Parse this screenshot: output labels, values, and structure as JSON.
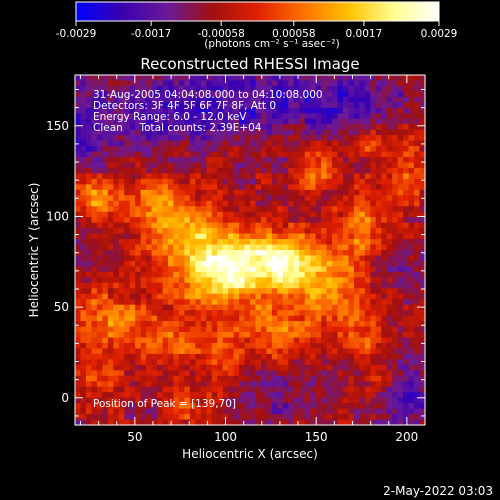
{
  "colorbar": {
    "tick_labels": [
      "-0.0029",
      "-0.0017",
      "-0.00058",
      "0.00058",
      "0.0017",
      "0.0029"
    ],
    "tick_values": [
      -0.0029,
      -0.0017,
      -0.00058,
      0.00058,
      0.0017,
      0.0029
    ],
    "range": [
      -0.0029,
      0.0029
    ],
    "unit_label": "(photons cm⁻² s⁻¹ asec⁻²)"
  },
  "chart_data": {
    "type": "heatmap",
    "title": "Reconstructed RHESSI Image",
    "xlabel": "Heliocentric X (arcsec)",
    "ylabel": "Heliocentric Y (arcsec)",
    "xlim": [
      17,
      210
    ],
    "ylim": [
      -15,
      178
    ],
    "x_ticks": [
      50,
      100,
      150,
      200
    ],
    "y_ticks": [
      0,
      50,
      100,
      150
    ],
    "annotations": [
      "31-Aug-2005 04:04:08.000 to 04:10:08.000",
      "Detectors: 3F 4F 5F 6F 7F 8F, Att 0",
      "Energy Range: 6.0 - 12.0 keV",
      "Clean     Total counts: 2.39E+04"
    ],
    "peak_label": "Position of Peak = [139,70]",
    "peak": [
      139,
      70
    ],
    "colormap": [
      "#0000ff",
      "#3a00b0",
      "#6a1a9a",
      "#a01010",
      "#e02000",
      "#ff7000",
      "#ffc000",
      "#ffff90",
      "#ffffff"
    ],
    "blobs": [
      {
        "x": 120,
        "y": 75,
        "sx": 24,
        "sy": 12,
        "a": 0.00285
      },
      {
        "x": 138,
        "y": 72,
        "sx": 12,
        "sy": 10,
        "a": 0.0009
      },
      {
        "x": 98,
        "y": 60,
        "sx": 14,
        "sy": 10,
        "a": 0.0012
      },
      {
        "x": 85,
        "y": 78,
        "sx": 16,
        "sy": 14,
        "a": 0.0015
      },
      {
        "x": 27,
        "y": 110,
        "sx": 10,
        "sy": 8,
        "a": 0.0017
      },
      {
        "x": 60,
        "y": 110,
        "sx": 12,
        "sy": 10,
        "a": 0.0011
      },
      {
        "x": 75,
        "y": 95,
        "sx": 14,
        "sy": 10,
        "a": 0.0013
      },
      {
        "x": 35,
        "y": 45,
        "sx": 14,
        "sy": 12,
        "a": 0.0014
      },
      {
        "x": 65,
        "y": 30,
        "sx": 14,
        "sy": 10,
        "a": 0.0013
      },
      {
        "x": 100,
        "y": 25,
        "sx": 10,
        "sy": 10,
        "a": 0.0012
      },
      {
        "x": 130,
        "y": 40,
        "sx": 14,
        "sy": 12,
        "a": 0.0013
      },
      {
        "x": 160,
        "y": 55,
        "sx": 12,
        "sy": 14,
        "a": 0.0013
      },
      {
        "x": 175,
        "y": 95,
        "sx": 10,
        "sy": 12,
        "a": 0.0014
      },
      {
        "x": 200,
        "y": 125,
        "sx": 8,
        "sy": 12,
        "a": 0.0013
      },
      {
        "x": 150,
        "y": 125,
        "sx": 8,
        "sy": 8,
        "a": 0.0012
      },
      {
        "x": 180,
        "y": 140,
        "sx": 6,
        "sy": 6,
        "a": 0.001
      },
      {
        "x": 178,
        "y": 35,
        "sx": 8,
        "sy": 8,
        "a": 0.0011
      },
      {
        "x": 30,
        "y": 10,
        "sx": 8,
        "sy": 10,
        "a": 0.0009
      },
      {
        "x": 185,
        "y": 10,
        "sx": 8,
        "sy": 8,
        "a": 0.0009
      },
      {
        "x": 80,
        "y": -5,
        "sx": 10,
        "sy": 8,
        "a": 0.0008
      },
      {
        "x": 75,
        "y": 160,
        "sx": 40,
        "sy": 14,
        "a": -0.0015
      },
      {
        "x": 160,
        "y": 165,
        "sx": 30,
        "sy": 12,
        "a": -0.0012
      },
      {
        "x": 200,
        "y": 0,
        "sx": 14,
        "sy": 14,
        "a": -0.0013
      },
      {
        "x": 130,
        "y": 0,
        "sx": 14,
        "sy": 10,
        "a": -0.0008
      },
      {
        "x": 20,
        "y": 140,
        "sx": 10,
        "sy": 14,
        "a": -0.0009
      },
      {
        "x": 200,
        "y": 70,
        "sx": 8,
        "sy": 10,
        "a": -0.0008
      }
    ]
  },
  "footer": {
    "timestamp": "2-May-2022 03:03"
  }
}
